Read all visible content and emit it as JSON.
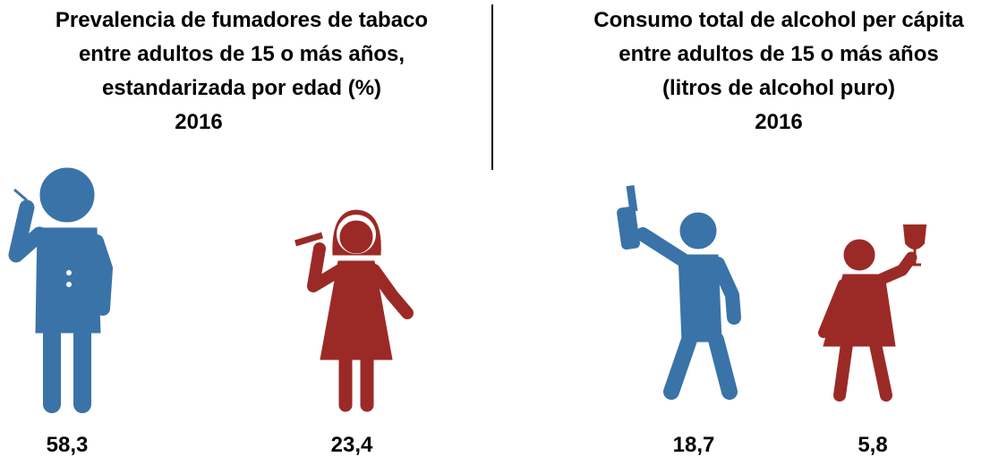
{
  "panels": [
    {
      "title_lines": [
        "Prevalencia de fumadores de tabaco",
        "entre adultos de 15 o más años,",
        "estandarizada por edad (%)"
      ],
      "year": "2016",
      "figures": [
        {
          "value": "58,3"
        },
        {
          "value": "23,4"
        }
      ]
    },
    {
      "title_lines": [
        "Consumo total de alcohol per cápita",
        "entre adultos de 15 o más años",
        "(litros de alcohol puro)"
      ],
      "year": "2016",
      "figures": [
        {
          "value": "18,7"
        },
        {
          "value": "5,8"
        }
      ]
    }
  ]
}
